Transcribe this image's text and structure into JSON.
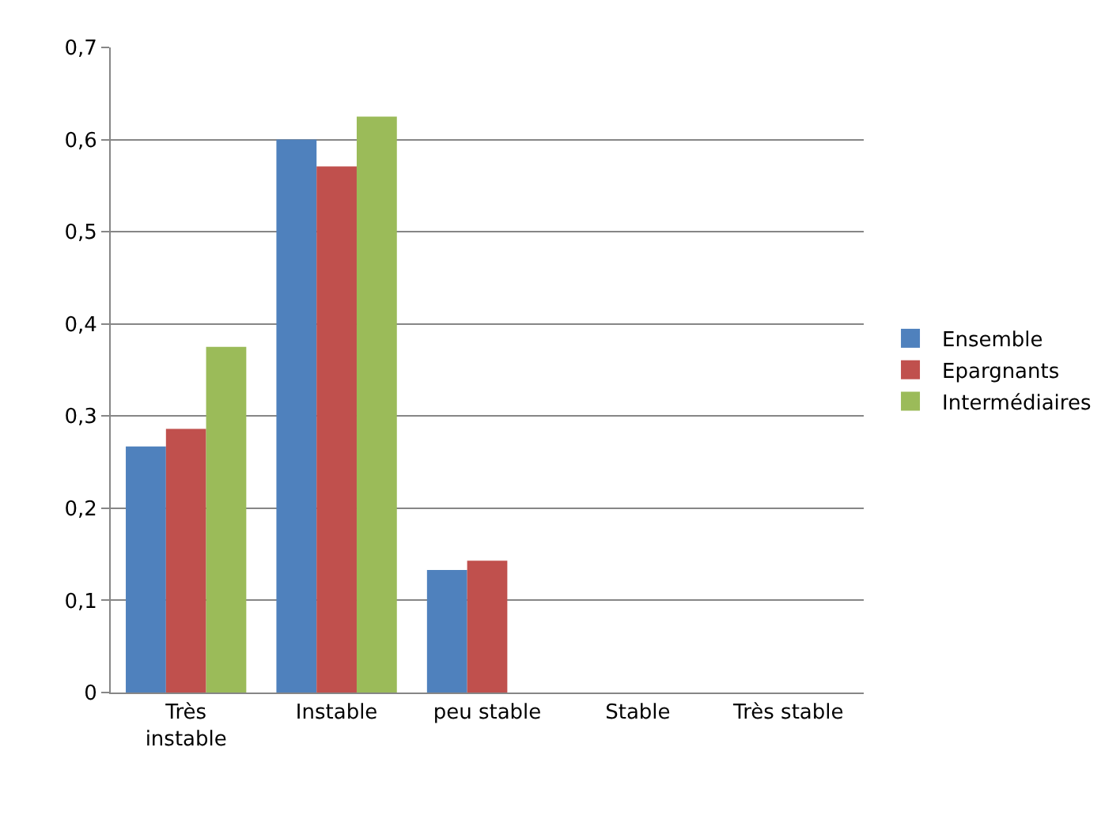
{
  "chart_data": {
    "type": "bar",
    "categories": [
      "Très instable",
      "Instable",
      "peu stable",
      "Stable",
      "Très stable"
    ],
    "series": [
      {
        "name": "Ensemble",
        "color": "#4f81bd",
        "values": [
          0.267,
          0.6,
          0.133,
          0,
          0
        ]
      },
      {
        "name": "Epargnants",
        "color": "#c0504d",
        "values": [
          0.286,
          0.571,
          0.143,
          0,
          0
        ]
      },
      {
        "name": "Intermédiaires",
        "color": "#9bbb59",
        "values": [
          0.375,
          0.625,
          0,
          0,
          0
        ]
      }
    ],
    "ylim": [
      0,
      0.7
    ],
    "yticks": [
      0,
      {
        "value": 0.1,
        "label": "0,1"
      },
      {
        "value": 0.2,
        "label": "0,2"
      },
      {
        "value": 0.3,
        "label": "0,3"
      },
      {
        "value": 0.4,
        "label": "0,4"
      },
      {
        "value": 0.5,
        "label": "0,5"
      },
      {
        "value": 0.6,
        "label": "0,6"
      },
      {
        "value": 0.7,
        "label": "0,7"
      }
    ],
    "grid": "y",
    "legend": "right"
  }
}
